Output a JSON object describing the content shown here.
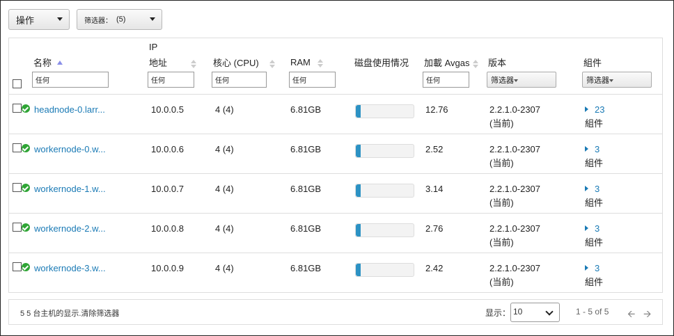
{
  "toolbar": {
    "actions_label": "操作",
    "filter_label": "筛选器：",
    "filter_count": "(5)"
  },
  "columns": {
    "name": "名称",
    "ip_line1": "IP",
    "ip_line2": "地址",
    "cores": "核心 (CPU)",
    "ram": "RAM",
    "disk": "磁盘使用情况",
    "load": "加載 Avgas",
    "version": "版本",
    "components": "組件"
  },
  "filters": {
    "name": "任何",
    "ip": "任何",
    "cores": "任何",
    "ram": "任何",
    "load": "任何",
    "version": "筛选器",
    "components": "筛选器"
  },
  "rows": [
    {
      "host": "headnode-0.larr...",
      "ip": "10.0.0.5",
      "cores": "4 (4)",
      "ram": "6.81GB",
      "disk_pct": 8,
      "load": "12.76",
      "version": "2.2.1.0-2307",
      "version_note": "(当前)",
      "comp_count": "23",
      "comp_label": "組件"
    },
    {
      "host": "workernode-0.w...",
      "ip": "10.0.0.6",
      "cores": "4 (4)",
      "ram": "6.81GB",
      "disk_pct": 8,
      "load": "2.52",
      "version": "2.2.1.0-2307",
      "version_note": "(当前)",
      "comp_count": "3",
      "comp_label": "組件"
    },
    {
      "host": "workernode-1.w...",
      "ip": "10.0.0.7",
      "cores": "4 (4)",
      "ram": "6.81GB",
      "disk_pct": 8,
      "load": "3.14",
      "version": "2.2.1.0-2307",
      "version_note": "(当前)",
      "comp_count": "3",
      "comp_label": "組件"
    },
    {
      "host": "workernode-2.w...",
      "ip": "10.0.0.8",
      "cores": "4 (4)",
      "ram": "6.81GB",
      "disk_pct": 8,
      "load": "2.76",
      "version": "2.2.1.0-2307",
      "version_note": "(当前)",
      "comp_count": "3",
      "comp_label": "組件"
    },
    {
      "host": "workernode-3.w...",
      "ip": "10.0.0.9",
      "cores": "4 (4)",
      "ram": "6.81GB",
      "disk_pct": 8,
      "load": "2.42",
      "version": "2.2.1.0-2307",
      "version_note": "(当前)",
      "comp_count": "3",
      "comp_label": "組件"
    }
  ],
  "footer": {
    "summary": "5 5 台主机的显示.清除筛选器",
    "show_label": "显示：",
    "page_size": "10",
    "range": "1 - 5 of 5"
  },
  "colors": {
    "link": "#1a7ab5",
    "status_ok": "#2fa535",
    "disk_fill": "#2c92c4"
  }
}
